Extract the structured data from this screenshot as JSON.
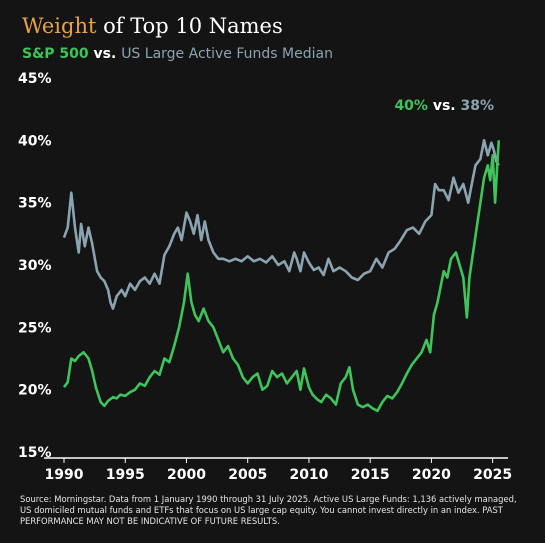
{
  "title": {
    "accent": "Weight",
    "rest": " of Top 10 Names"
  },
  "subtitle": {
    "series1": "S&P 500",
    "vs": " vs. ",
    "series2": "US Large Active Funds Median"
  },
  "annotation": {
    "v1": "40%",
    "vs": " vs. ",
    "v2": "38%"
  },
  "footnote": "Source: Morningstar. Data from 1 January 1990 through 31 July 2025. Active US Large Funds: 1,136 actively managed, US domiciled mutual funds and ETFs that focus on US large cap equity. You cannot invest directly in an index. PAST PERFORMANCE MAY NOT BE INDICATIVE OF FUTURE RESULTS.",
  "colors": {
    "sp500": "#3ec45a",
    "active": "#8aa4b2",
    "accent": "#e8a24a",
    "background": "#141414"
  },
  "chart_data": {
    "type": "line",
    "xlim": [
      1990,
      2025.6
    ],
    "ylim": [
      15,
      45
    ],
    "x_ticks": [
      "1990",
      "1995",
      "2000",
      "2005",
      "2010",
      "2015",
      "2020",
      "2025"
    ],
    "y_ticks": [
      "15%",
      "20%",
      "25%",
      "30%",
      "35%",
      "40%",
      "45%"
    ],
    "grid": false,
    "series": [
      {
        "name": "US Large Active Funds Median",
        "color": "#8aa4b2",
        "points": [
          [
            1990,
            32.2
          ],
          [
            1990.3,
            33
          ],
          [
            1990.6,
            35.8
          ],
          [
            1990.9,
            33
          ],
          [
            1991.2,
            31
          ],
          [
            1991.4,
            33.3
          ],
          [
            1991.7,
            31.5
          ],
          [
            1992,
            33
          ],
          [
            1992.3,
            31.7
          ],
          [
            1992.7,
            29.5
          ],
          [
            1993,
            29
          ],
          [
            1993.3,
            28.7
          ],
          [
            1993.6,
            28
          ],
          [
            1993.8,
            27
          ],
          [
            1994,
            26.5
          ],
          [
            1994.3,
            27.5
          ],
          [
            1994.7,
            28
          ],
          [
            1995,
            27.5
          ],
          [
            1995.4,
            28.5
          ],
          [
            1995.8,
            28
          ],
          [
            1996.2,
            28.7
          ],
          [
            1996.6,
            29
          ],
          [
            1997,
            28.5
          ],
          [
            1997.4,
            29.3
          ],
          [
            1997.8,
            28.5
          ],
          [
            1998.2,
            30.8
          ],
          [
            1998.6,
            31.5
          ],
          [
            1999,
            32.5
          ],
          [
            1999.3,
            33
          ],
          [
            1999.6,
            32
          ],
          [
            2000,
            34.2
          ],
          [
            2000.3,
            33.5
          ],
          [
            2000.6,
            32.5
          ],
          [
            2000.9,
            34
          ],
          [
            2001.2,
            32
          ],
          [
            2001.5,
            33.5
          ],
          [
            2001.8,
            32
          ],
          [
            2002.2,
            31
          ],
          [
            2002.6,
            30.5
          ],
          [
            2003,
            30.5
          ],
          [
            2003.5,
            30.3
          ],
          [
            2004,
            30.5
          ],
          [
            2004.5,
            30.3
          ],
          [
            2005,
            30.7
          ],
          [
            2005.5,
            30.3
          ],
          [
            2006,
            30.5
          ],
          [
            2006.5,
            30.2
          ],
          [
            2007,
            30.7
          ],
          [
            2007.5,
            30
          ],
          [
            2008,
            30.3
          ],
          [
            2008.4,
            29.5
          ],
          [
            2008.8,
            31
          ],
          [
            2009,
            30.5
          ],
          [
            2009.3,
            29.5
          ],
          [
            2009.6,
            31
          ],
          [
            2010,
            30.2
          ],
          [
            2010.4,
            29.6
          ],
          [
            2010.8,
            29.8
          ],
          [
            2011.2,
            29.2
          ],
          [
            2011.6,
            30.5
          ],
          [
            2012,
            29.5
          ],
          [
            2012.5,
            29.8
          ],
          [
            2013,
            29.5
          ],
          [
            2013.5,
            29
          ],
          [
            2014,
            28.8
          ],
          [
            2014.5,
            29.3
          ],
          [
            2015,
            29.5
          ],
          [
            2015.5,
            30.5
          ],
          [
            2016,
            29.8
          ],
          [
            2016.5,
            31
          ],
          [
            2017,
            31.3
          ],
          [
            2017.5,
            32
          ],
          [
            2018,
            32.8
          ],
          [
            2018.5,
            33
          ],
          [
            2019,
            32.5
          ],
          [
            2019.5,
            33.5
          ],
          [
            2020,
            34
          ],
          [
            2020.3,
            36.5
          ],
          [
            2020.6,
            36
          ],
          [
            2021,
            36
          ],
          [
            2021.4,
            35.2
          ],
          [
            2021.8,
            37
          ],
          [
            2022.2,
            35.8
          ],
          [
            2022.6,
            36.5
          ],
          [
            2023,
            35
          ],
          [
            2023.3,
            36.5
          ],
          [
            2023.6,
            38
          ],
          [
            2024,
            38.5
          ],
          [
            2024.3,
            40
          ],
          [
            2024.6,
            38.8
          ],
          [
            2024.9,
            39.8
          ],
          [
            2025.1,
            39.2
          ],
          [
            2025.3,
            38.3
          ],
          [
            2025.5,
            38
          ]
        ]
      },
      {
        "name": "S&P 500",
        "color": "#3ec45a",
        "points": [
          [
            1990,
            20.2
          ],
          [
            1990.3,
            20.6
          ],
          [
            1990.6,
            22.5
          ],
          [
            1990.9,
            22.3
          ],
          [
            1991.2,
            22.7
          ],
          [
            1991.6,
            23
          ],
          [
            1992,
            22.5
          ],
          [
            1992.3,
            21.5
          ],
          [
            1992.6,
            20.2
          ],
          [
            1993,
            19
          ],
          [
            1993.3,
            18.7
          ],
          [
            1993.6,
            19.1
          ],
          [
            1994,
            19.4
          ],
          [
            1994.3,
            19.3
          ],
          [
            1994.6,
            19.6
          ],
          [
            1995,
            19.5
          ],
          [
            1995.4,
            19.8
          ],
          [
            1995.8,
            20
          ],
          [
            1996.2,
            20.5
          ],
          [
            1996.6,
            20.3
          ],
          [
            1997,
            21
          ],
          [
            1997.4,
            21.5
          ],
          [
            1997.8,
            21.2
          ],
          [
            1998.2,
            22.5
          ],
          [
            1998.6,
            22.2
          ],
          [
            1999,
            23.5
          ],
          [
            1999.4,
            25
          ],
          [
            1999.8,
            27
          ],
          [
            2000.1,
            29.3
          ],
          [
            2000.4,
            27
          ],
          [
            2000.7,
            26
          ],
          [
            2001,
            25.5
          ],
          [
            2001.4,
            26.5
          ],
          [
            2001.8,
            25.5
          ],
          [
            2002.2,
            25
          ],
          [
            2002.6,
            24
          ],
          [
            2003,
            23
          ],
          [
            2003.4,
            23.5
          ],
          [
            2003.8,
            22.5
          ],
          [
            2004.2,
            22
          ],
          [
            2004.6,
            21
          ],
          [
            2005,
            20.5
          ],
          [
            2005.4,
            21
          ],
          [
            2005.8,
            21.3
          ],
          [
            2006.2,
            20
          ],
          [
            2006.6,
            20.3
          ],
          [
            2007,
            21.5
          ],
          [
            2007.4,
            21
          ],
          [
            2007.8,
            21.3
          ],
          [
            2008.2,
            20.5
          ],
          [
            2008.6,
            21
          ],
          [
            2009,
            21.5
          ],
          [
            2009.3,
            20
          ],
          [
            2009.6,
            21.7
          ],
          [
            2010,
            20.2
          ],
          [
            2010.3,
            19.6
          ],
          [
            2010.7,
            19.2
          ],
          [
            2011,
            19
          ],
          [
            2011.4,
            19.6
          ],
          [
            2011.8,
            19.3
          ],
          [
            2012.2,
            18.8
          ],
          [
            2012.6,
            20.5
          ],
          [
            2013,
            21
          ],
          [
            2013.3,
            21.8
          ],
          [
            2013.6,
            20
          ],
          [
            2014,
            18.8
          ],
          [
            2014.4,
            18.6
          ],
          [
            2014.8,
            18.8
          ],
          [
            2015.2,
            18.5
          ],
          [
            2015.6,
            18.3
          ],
          [
            2016,
            19
          ],
          [
            2016.4,
            19.5
          ],
          [
            2016.8,
            19.3
          ],
          [
            2017.2,
            19.8
          ],
          [
            2017.6,
            20.5
          ],
          [
            2018,
            21.3
          ],
          [
            2018.4,
            22
          ],
          [
            2018.8,
            22.5
          ],
          [
            2019.2,
            23
          ],
          [
            2019.6,
            24
          ],
          [
            2019.9,
            23
          ],
          [
            2020.2,
            26
          ],
          [
            2020.5,
            27
          ],
          [
            2020.8,
            28.5
          ],
          [
            2021,
            29.5
          ],
          [
            2021.3,
            29
          ],
          [
            2021.6,
            30.5
          ],
          [
            2022,
            31
          ],
          [
            2022.3,
            30
          ],
          [
            2022.6,
            29
          ],
          [
            2022.9,
            25.8
          ],
          [
            2023.1,
            29
          ],
          [
            2023.4,
            31
          ],
          [
            2023.7,
            33
          ],
          [
            2024,
            35
          ],
          [
            2024.3,
            37
          ],
          [
            2024.6,
            38
          ],
          [
            2024.8,
            36.8
          ],
          [
            2025,
            38.8
          ],
          [
            2025.2,
            35
          ],
          [
            2025.4,
            38.5
          ],
          [
            2025.5,
            40
          ]
        ]
      }
    ]
  }
}
